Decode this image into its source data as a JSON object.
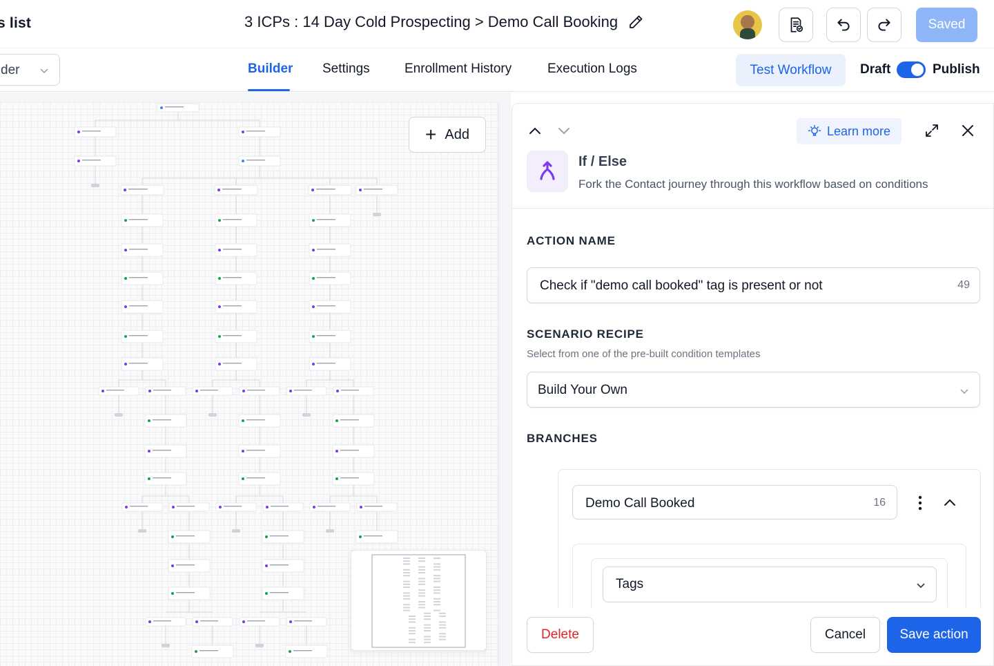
{
  "header": {
    "back_label": "s list",
    "workflow_title": "3 ICPs : 14 Day Cold Prospecting > Demo Call Booking",
    "saved_label": "Saved"
  },
  "subbar": {
    "folder_label": "der",
    "tabs": [
      {
        "label": "Builder",
        "active": true
      },
      {
        "label": "Settings",
        "active": false
      },
      {
        "label": "Enrollment History",
        "active": false
      },
      {
        "label": "Execution Logs",
        "active": false
      }
    ],
    "test_workflow_label": "Test Workflow",
    "draft_label": "Draft",
    "publish_label": "Publish",
    "publish_toggle_on": true
  },
  "canvas": {
    "add_label": "Add"
  },
  "panel": {
    "learn_more_label": "Learn more",
    "action_title": "If / Else",
    "action_description": "Fork the Contact journey through this workflow based on conditions",
    "action_name_label": "ACTION NAME",
    "action_name_value": "Check if \"demo call booked\" tag is present or not",
    "action_name_count": "49",
    "scenario_label": "SCENARIO RECIPE",
    "scenario_hint": "Select from one of the pre-built condition templates",
    "scenario_value": "Build Your Own",
    "branches_label": "BRANCHES",
    "branch_name": "Demo Call Booked",
    "branch_name_count": "16",
    "condition_field": "Tags",
    "delete_label": "Delete",
    "cancel_label": "Cancel",
    "save_label": "Save action"
  },
  "colors": {
    "accent": "#1d64e8",
    "saved_disabled": "#8fb6f8",
    "danger": "#dc2626",
    "ifelse_icon": "#7c3aed"
  }
}
